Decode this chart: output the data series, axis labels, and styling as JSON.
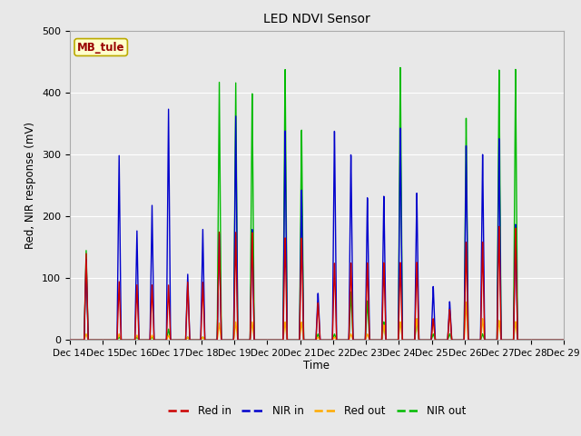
{
  "title": "LED NDVI Sensor",
  "ylabel": "Red, NIR response (mV)",
  "xlabel": "Time",
  "annotation": "MB_tule",
  "ylim": [
    0,
    500
  ],
  "xlim": [
    0,
    360
  ],
  "xtick_labels": [
    "Dec 14",
    "Dec 15",
    "Dec 16",
    "Dec 17",
    "Dec 18",
    "Dec 19",
    "Dec 20",
    "Dec 21",
    "Dec 22",
    "Dec 23",
    "Dec 24",
    "Dec 25",
    "Dec 26",
    "Dec 27",
    "Dec 28",
    "Dec 29"
  ],
  "xtick_positions": [
    0,
    24,
    48,
    72,
    96,
    120,
    144,
    168,
    192,
    216,
    240,
    264,
    288,
    312,
    336,
    360
  ],
  "colors": {
    "red_in": "#cc0000",
    "nir_in": "#0000cc",
    "red_out": "#ffaa00",
    "nir_out": "#00bb00"
  },
  "legend_labels": [
    "Red in",
    "NIR in",
    "Red out",
    "NIR out"
  ],
  "fig_bg_color": "#e8e8e8",
  "plot_bg_color": "#e8e8e8",
  "spikes": [
    {
      "t": 12,
      "ri": 140,
      "ni": 130,
      "ro": 10,
      "no": 145
    },
    {
      "t": 36,
      "ri": 95,
      "ni": 300,
      "ro": 10,
      "no": 5
    },
    {
      "t": 49,
      "ri": 90,
      "ni": 178,
      "ro": 8,
      "no": 5
    },
    {
      "t": 60,
      "ri": 90,
      "ni": 220,
      "ro": 8,
      "no": 5
    },
    {
      "t": 72,
      "ri": 90,
      "ni": 378,
      "ro": 8,
      "no": 18
    },
    {
      "t": 86,
      "ri": 95,
      "ni": 108,
      "ro": 5,
      "no": 5
    },
    {
      "t": 97,
      "ri": 95,
      "ni": 182,
      "ro": 5,
      "no": 5
    },
    {
      "t": 109,
      "ri": 178,
      "ni": 175,
      "ro": 28,
      "no": 425
    },
    {
      "t": 121,
      "ri": 178,
      "ni": 370,
      "ro": 30,
      "no": 425
    },
    {
      "t": 133,
      "ri": 178,
      "ni": 183,
      "ro": 30,
      "no": 408
    },
    {
      "t": 157,
      "ri": 170,
      "ni": 348,
      "ro": 30,
      "no": 450
    },
    {
      "t": 169,
      "ri": 170,
      "ni": 250,
      "ro": 30,
      "no": 350
    },
    {
      "t": 181,
      "ri": 62,
      "ni": 78,
      "ro": 5,
      "no": 10
    },
    {
      "t": 193,
      "ri": 128,
      "ni": 348,
      "ro": 5,
      "no": 10
    },
    {
      "t": 205,
      "ri": 128,
      "ni": 308,
      "ro": 10,
      "no": 80
    },
    {
      "t": 217,
      "ri": 128,
      "ni": 236,
      "ro": 10,
      "no": 65
    },
    {
      "t": 229,
      "ri": 128,
      "ni": 238,
      "ro": 25,
      "no": 30
    },
    {
      "t": 241,
      "ri": 128,
      "ni": 350,
      "ro": 30,
      "no": 450
    },
    {
      "t": 253,
      "ri": 128,
      "ni": 242,
      "ro": 35,
      "no": 35
    },
    {
      "t": 265,
      "ri": 35,
      "ni": 88,
      "ro": 35,
      "no": 10
    },
    {
      "t": 277,
      "ri": 50,
      "ni": 63,
      "ro": 50,
      "no": 10
    },
    {
      "t": 289,
      "ri": 160,
      "ni": 318,
      "ro": 62,
      "no": 363
    },
    {
      "t": 301,
      "ri": 160,
      "ni": 303,
      "ro": 35,
      "no": 10
    },
    {
      "t": 313,
      "ri": 185,
      "ni": 328,
      "ro": 32,
      "no": 440
    },
    {
      "t": 325,
      "ri": 182,
      "ni": 188,
      "ro": 30,
      "no": 440
    }
  ]
}
